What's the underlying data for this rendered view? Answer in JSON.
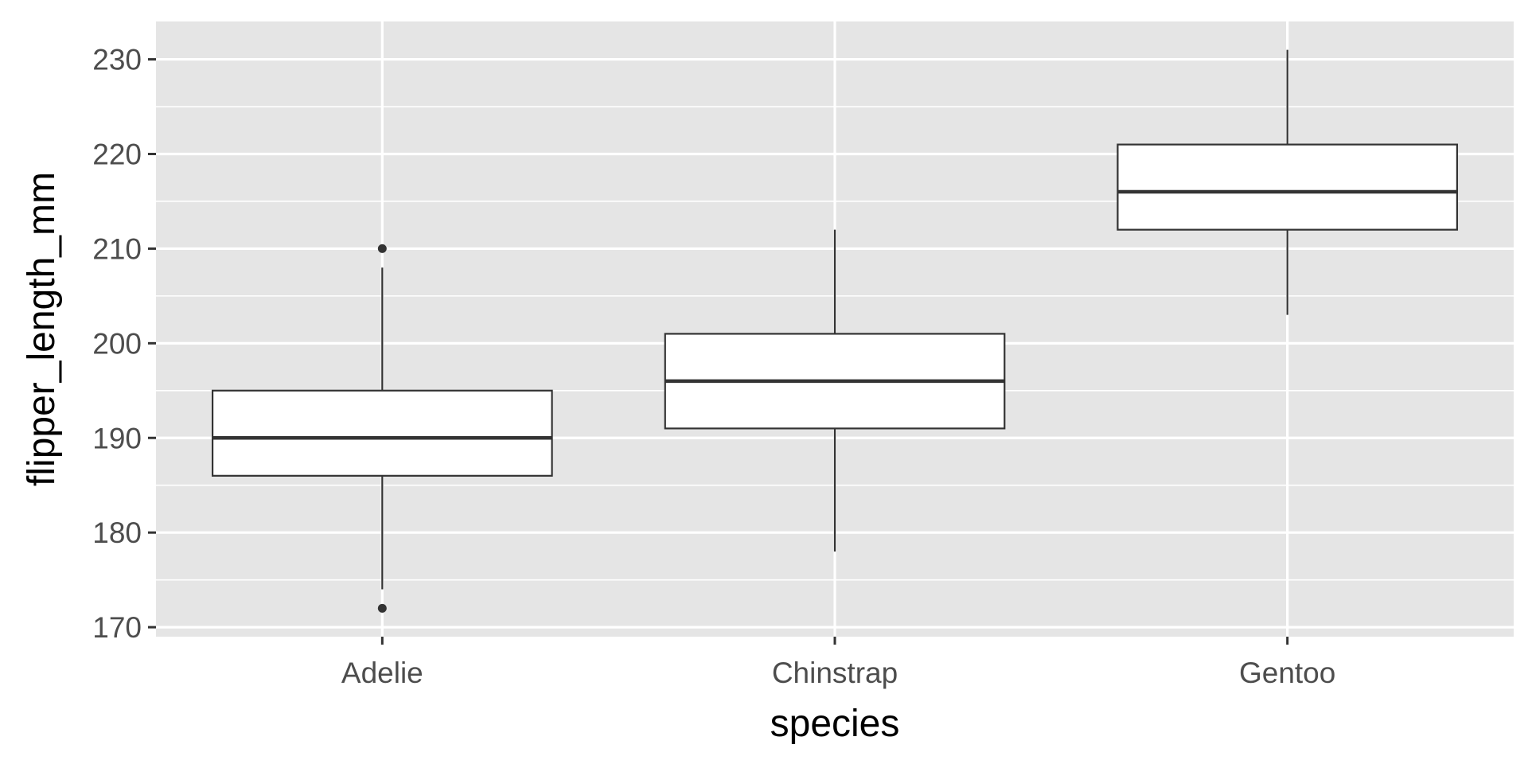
{
  "chart_data": {
    "type": "boxplot",
    "title": "",
    "xlabel": "species",
    "ylabel": "flipper_length_mm",
    "categories": [
      "Adelie",
      "Chinstrap",
      "Gentoo"
    ],
    "boxes": [
      {
        "category": "Adelie",
        "whisker_low": 174,
        "q1": 186,
        "median": 190,
        "q3": 195,
        "whisker_high": 208,
        "outliers": [
          172,
          210
        ]
      },
      {
        "category": "Chinstrap",
        "whisker_low": 178,
        "q1": 191,
        "median": 196,
        "q3": 201,
        "whisker_high": 212,
        "outliers": []
      },
      {
        "category": "Gentoo",
        "whisker_low": 203,
        "q1": 212,
        "median": 216,
        "q3": 221,
        "whisker_high": 231,
        "outliers": []
      }
    ],
    "ylim": [
      169,
      234
    ],
    "yticks": [
      170,
      180,
      190,
      200,
      210,
      220,
      230
    ],
    "grid": true,
    "legend": "none",
    "colors": {
      "panel_background": "#e5e5e5",
      "grid": "#ffffff",
      "box_fill": "#ffffff",
      "box_stroke": "#333333",
      "axis_text": "#4d4d4d",
      "tick": "#333333"
    }
  }
}
